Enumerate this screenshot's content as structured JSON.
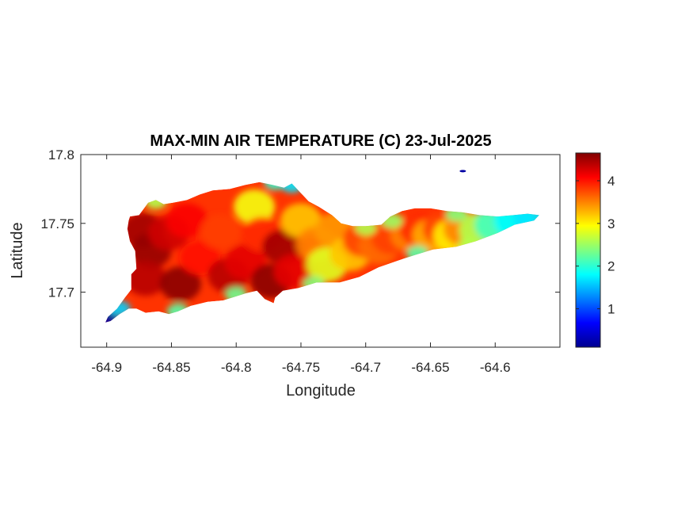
{
  "chart_data": {
    "type": "heatmap",
    "title": "MAX-MIN AIR TEMPERATURE (C) 23-Jul-2025",
    "xlabel": "Longitude",
    "ylabel": "Latitude",
    "xlim": [
      -64.92,
      -64.55
    ],
    "ylim": [
      17.66,
      17.8
    ],
    "xticks": [
      -64.9,
      -64.85,
      -64.8,
      -64.75,
      -64.7,
      -64.65,
      -64.6
    ],
    "xtick_labels": [
      "-64.9",
      "-64.85",
      "-64.8",
      "-64.75",
      "-64.7",
      "-64.65",
      "-64.6"
    ],
    "yticks": [
      17.7,
      17.75,
      17.8
    ],
    "ytick_labels": [
      "17.7",
      "17.75",
      "17.8"
    ],
    "colormap": "jet",
    "clim": [
      0.1,
      4.65
    ],
    "colorbar_ticks": [
      1,
      2,
      3,
      4
    ],
    "colorbar_tick_labels": [
      "1",
      "2",
      "3",
      "4"
    ],
    "colors": [
      "#00008f",
      "#0000ff",
      "#00ffff",
      "#ffff00",
      "#ff0000",
      "#800000"
    ],
    "grid": false,
    "island_outline": [
      [
        -64.882,
        17.755
      ],
      [
        -64.875,
        17.756
      ],
      [
        -64.868,
        17.765
      ],
      [
        -64.862,
        17.767
      ],
      [
        -64.856,
        17.764
      ],
      [
        -64.849,
        17.765
      ],
      [
        -64.838,
        17.767
      ],
      [
        -64.828,
        17.771
      ],
      [
        -64.818,
        17.774
      ],
      [
        -64.805,
        17.775
      ],
      [
        -64.793,
        17.778
      ],
      [
        -64.782,
        17.78
      ],
      [
        -64.772,
        17.778
      ],
      [
        -64.763,
        17.776
      ],
      [
        -64.757,
        17.779
      ],
      [
        -64.752,
        17.774
      ],
      [
        -64.744,
        17.766
      ],
      [
        -64.736,
        17.762
      ],
      [
        -64.726,
        17.756
      ],
      [
        -64.719,
        17.75
      ],
      [
        -64.71,
        17.748
      ],
      [
        -64.7,
        17.748
      ],
      [
        -64.688,
        17.749
      ],
      [
        -64.681,
        17.755
      ],
      [
        -64.672,
        17.759
      ],
      [
        -64.662,
        17.761
      ],
      [
        -64.65,
        17.761
      ],
      [
        -64.637,
        17.759
      ],
      [
        -64.625,
        17.758
      ],
      [
        -64.612,
        17.756
      ],
      [
        -64.598,
        17.755
      ],
      [
        -64.586,
        17.756
      ],
      [
        -64.575,
        17.757
      ],
      [
        -64.566,
        17.756
      ],
      [
        -64.57,
        17.752
      ],
      [
        -64.585,
        17.749
      ],
      [
        -64.598,
        17.743
      ],
      [
        -64.615,
        17.737
      ],
      [
        -64.63,
        17.733
      ],
      [
        -64.648,
        17.731
      ],
      [
        -64.662,
        17.727
      ],
      [
        -64.675,
        17.723
      ],
      [
        -64.69,
        17.718
      ],
      [
        -64.705,
        17.711
      ],
      [
        -64.72,
        17.707
      ],
      [
        -64.738,
        17.707
      ],
      [
        -64.752,
        17.703
      ],
      [
        -64.764,
        17.701
      ],
      [
        -64.77,
        17.696
      ],
      [
        -64.771,
        17.692
      ],
      [
        -64.778,
        17.695
      ],
      [
        -64.784,
        17.701
      ],
      [
        -64.793,
        17.699
      ],
      [
        -64.81,
        17.694
      ],
      [
        -64.822,
        17.693
      ],
      [
        -64.835,
        17.69
      ],
      [
        -64.845,
        17.686
      ],
      [
        -64.852,
        17.684
      ],
      [
        -64.86,
        17.686
      ],
      [
        -64.87,
        17.685
      ],
      [
        -64.877,
        17.688
      ],
      [
        -64.883,
        17.688
      ],
      [
        -64.89,
        17.684
      ],
      [
        -64.897,
        17.679
      ],
      [
        -64.901,
        17.678
      ],
      [
        -64.899,
        17.682
      ],
      [
        -64.892,
        17.688
      ],
      [
        -64.886,
        17.696
      ],
      [
        -64.881,
        17.702
      ],
      [
        -64.881,
        17.713
      ],
      [
        -64.877,
        17.717
      ],
      [
        -64.878,
        17.73
      ],
      [
        -64.882,
        17.737
      ],
      [
        -64.884,
        17.746
      ],
      [
        -64.883,
        17.752
      ]
    ],
    "field_points": [
      {
        "lon": -64.872,
        "lat": 17.745,
        "value": 4.5
      },
      {
        "lon": -64.866,
        "lat": 17.73,
        "value": 4.55
      },
      {
        "lon": -64.87,
        "lat": 17.71,
        "value": 4.4
      },
      {
        "lon": -64.852,
        "lat": 17.743,
        "value": 4.3
      },
      {
        "lon": -64.843,
        "lat": 17.706,
        "value": 4.6
      },
      {
        "lon": -64.838,
        "lat": 17.752,
        "value": 4.1
      },
      {
        "lon": -64.828,
        "lat": 17.725,
        "value": 4.0
      },
      {
        "lon": -64.812,
        "lat": 17.744,
        "value": 3.8
      },
      {
        "lon": -64.806,
        "lat": 17.712,
        "value": 4.4
      },
      {
        "lon": -64.793,
        "lat": 17.722,
        "value": 4.2
      },
      {
        "lon": -64.786,
        "lat": 17.762,
        "value": 2.9
      },
      {
        "lon": -64.78,
        "lat": 17.742,
        "value": 3.9
      },
      {
        "lon": -64.773,
        "lat": 17.708,
        "value": 4.6
      },
      {
        "lon": -64.764,
        "lat": 17.733,
        "value": 4.5
      },
      {
        "lon": -64.755,
        "lat": 17.715,
        "value": 4.2
      },
      {
        "lon": -64.75,
        "lat": 17.752,
        "value": 3.2
      },
      {
        "lon": -64.738,
        "lat": 17.735,
        "value": 3.5
      },
      {
        "lon": -64.73,
        "lat": 17.72,
        "value": 2.8
      },
      {
        "lon": -64.724,
        "lat": 17.745,
        "value": 3.4
      },
      {
        "lon": -64.712,
        "lat": 17.728,
        "value": 3.2
      },
      {
        "lon": -64.702,
        "lat": 17.738,
        "value": 3.8
      },
      {
        "lon": -64.69,
        "lat": 17.733,
        "value": 3.6
      },
      {
        "lon": -64.68,
        "lat": 17.74,
        "value": 3.8
      },
      {
        "lon": -64.665,
        "lat": 17.742,
        "value": 3.5
      },
      {
        "lon": -64.658,
        "lat": 17.746,
        "value": 3.9
      },
      {
        "lon": -64.648,
        "lat": 17.741,
        "value": 3.3
      },
      {
        "lon": -64.64,
        "lat": 17.746,
        "value": 3.8
      },
      {
        "lon": -64.632,
        "lat": 17.741,
        "value": 3.0
      },
      {
        "lon": -64.624,
        "lat": 17.746,
        "value": 3.5
      },
      {
        "lon": -64.612,
        "lat": 17.745,
        "value": 2.6
      },
      {
        "lon": -64.6,
        "lat": 17.749,
        "value": 2.1
      },
      {
        "lon": -64.585,
        "lat": 17.752,
        "value": 1.8
      },
      {
        "lon": -64.57,
        "lat": 17.755,
        "value": 1.7
      }
    ],
    "edge_points": [
      {
        "lon": -64.9,
        "lat": 17.68,
        "value": 0.2
      },
      {
        "lon": -64.89,
        "lat": 17.688,
        "value": 1.6
      },
      {
        "lon": -64.862,
        "lat": 17.766,
        "value": 2.6
      },
      {
        "lon": -64.845,
        "lat": 17.686,
        "value": 2.2
      },
      {
        "lon": -64.8,
        "lat": 17.698,
        "value": 2.3
      },
      {
        "lon": -64.77,
        "lat": 17.78,
        "value": 2.0
      },
      {
        "lon": -64.757,
        "lat": 17.778,
        "value": 1.7
      },
      {
        "lon": -64.74,
        "lat": 17.706,
        "value": 2.4
      },
      {
        "lon": -64.7,
        "lat": 17.747,
        "value": 2.6
      },
      {
        "lon": -64.68,
        "lat": 17.752,
        "value": 2.5
      },
      {
        "lon": -64.66,
        "lat": 17.728,
        "value": 2.2
      },
      {
        "lon": -64.63,
        "lat": 17.757,
        "value": 2.4
      },
      {
        "lon": -64.62,
        "lat": 17.734,
        "value": 2.6
      },
      {
        "lon": -64.625,
        "lat": 17.788,
        "value": 0.2
      }
    ],
    "islet": {
      "lon": -64.625,
      "lat": 17.788,
      "value": 0.2
    }
  }
}
